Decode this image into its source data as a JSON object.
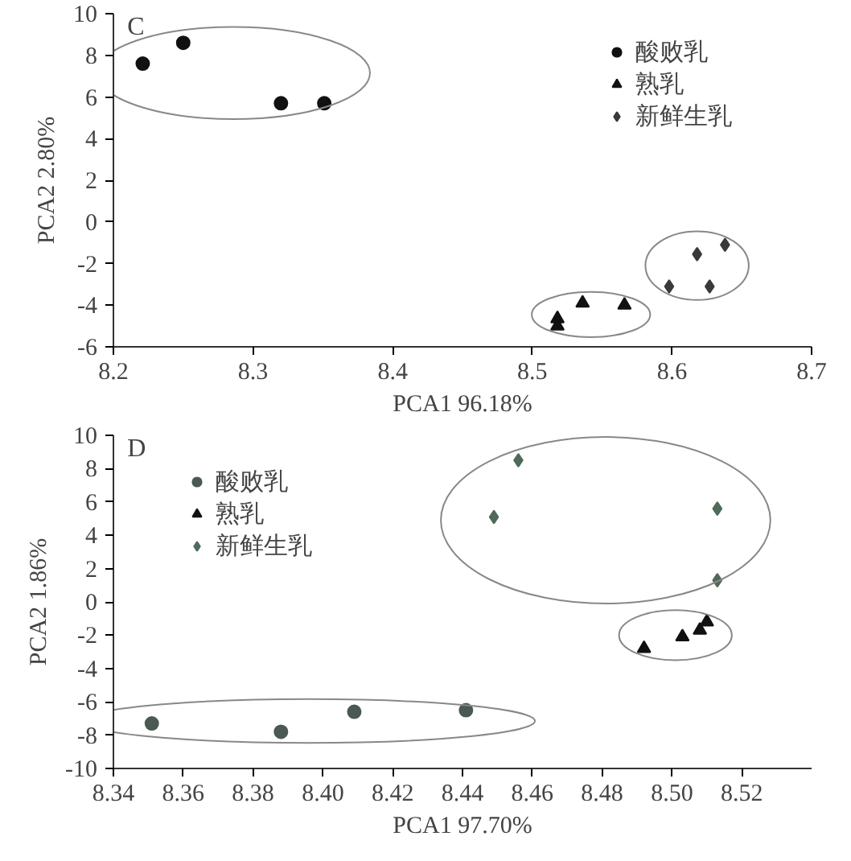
{
  "chart_data": [
    {
      "type": "scatter",
      "xlabel": "PCA1 96.18%",
      "ylabel": "PCA2 2.80%",
      "annotations": [
        "C"
      ],
      "xlim": [
        8.2,
        8.7
      ],
      "xticks": [
        8.2,
        8.3,
        8.4,
        8.5,
        8.6,
        8.7
      ],
      "ylim": [
        -6,
        10
      ],
      "yticks": [
        -6,
        -4,
        -2,
        0,
        2,
        4,
        6,
        8,
        10
      ],
      "grid": false,
      "legend": "top right",
      "series": [
        {
          "name": "酸败乳",
          "color": "#111111",
          "marker": "circle",
          "x": [
            8.221,
            8.25,
            8.32,
            8.351
          ],
          "values": [
            7.6,
            8.6,
            5.7,
            5.7
          ]
        },
        {
          "name": "熟乳",
          "color": "#111111",
          "marker": "triangle",
          "x": [
            8.536,
            8.566,
            8.518,
            8.518
          ],
          "values": [
            -3.9,
            -4.0,
            -4.65,
            -5.0
          ]
        },
        {
          "name": "新鲜生乳",
          "color": "#3a3a3a",
          "marker": "diamond",
          "x": [
            8.638,
            8.618,
            8.598,
            8.627
          ],
          "values": [
            -1.1,
            -1.55,
            -3.1,
            -3.1
          ]
        }
      ]
    },
    {
      "type": "scatter",
      "xlabel": "PCA1 97.70%",
      "ylabel": "PCA2 1.86%",
      "annotations": [
        "D"
      ],
      "xlim": [
        8.34,
        8.54
      ],
      "xticks": [
        8.34,
        8.36,
        8.38,
        {
          "value": 8.4,
          "label": "8.40"
        },
        8.42,
        8.44,
        8.46,
        8.48,
        {
          "value": 8.5,
          "label": "8.50"
        },
        8.52
      ],
      "ylim": [
        -10,
        10
      ],
      "yticks": [
        -10,
        -8,
        -6,
        -4,
        -2,
        0,
        2,
        4,
        6,
        8,
        10
      ],
      "grid": false,
      "legend": "top left",
      "series": [
        {
          "name": "酸败乳",
          "color": "#4a5a52",
          "marker": "circle",
          "x": [
            8.351,
            8.388,
            8.409,
            8.441
          ],
          "values": [
            -7.3,
            -7.8,
            -6.6,
            -6.5
          ]
        },
        {
          "name": "熟乳",
          "color": "#111111",
          "marker": "triangle",
          "x": [
            8.492,
            8.503,
            8.508,
            8.51
          ],
          "values": [
            -2.8,
            -2.1,
            -1.7,
            -1.2
          ]
        },
        {
          "name": "新鲜生乳",
          "color": "#4f6a5a",
          "marker": "diamond",
          "x": [
            8.456,
            8.449,
            8.513,
            8.513
          ],
          "values": [
            8.5,
            5.1,
            5.6,
            1.3
          ]
        }
      ]
    }
  ]
}
